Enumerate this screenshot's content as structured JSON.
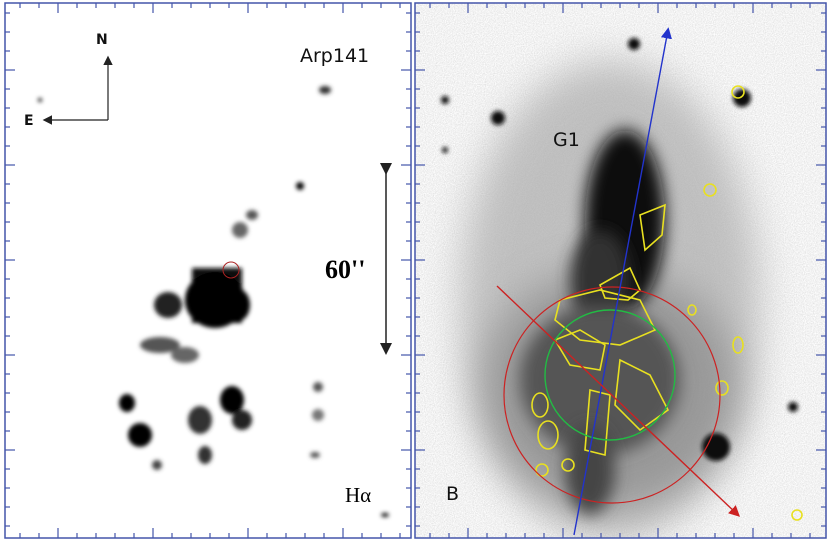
{
  "left_panel": {
    "north": "N",
    "east": "E",
    "object": "Arp141",
    "scale": "60''",
    "band": "Hα"
  },
  "right_panel": {
    "band": "B",
    "galaxy": "G1"
  }
}
